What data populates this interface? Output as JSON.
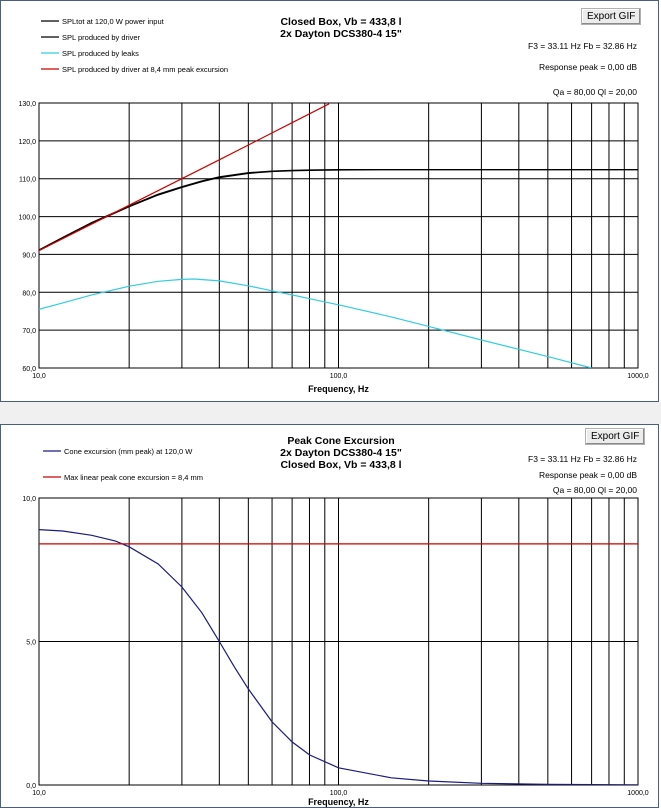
{
  "chart_data": [
    {
      "type": "line",
      "title_lines": [
        "Closed Box, Vb = 433,8 l",
        "2x Dayton  DCS380-4 15\""
      ],
      "xlabel": "Frequency, Hz",
      "ylabel": "",
      "x_scale": "log",
      "xlim": [
        10,
        1000
      ],
      "ylim": [
        60,
        130
      ],
      "x_tick_labels": [
        "10,0",
        "100,0",
        "1000,0"
      ],
      "y_tick_labels": [
        "60,0",
        "70,0",
        "80,0",
        "90,0",
        "100,0",
        "110,0",
        "120,0",
        "130,0"
      ],
      "info": [
        "F3 = 33.11 Hz  Fb = 32.86 Hz",
        "Response peak = 0,00 dB",
        "Qa = 80,00  Ql = 20,00"
      ],
      "export_button": "Export GIF",
      "grid": true,
      "legend_position": "top-left",
      "series": [
        {
          "name": "SPLtot  at 120,0  W power  input",
          "color": "#000000",
          "x": [
            10,
            12,
            15,
            20,
            25,
            30,
            35,
            40,
            50,
            60,
            70,
            80,
            100,
            150,
            200,
            300,
            500,
            700,
            1000
          ],
          "y": [
            91.2,
            94.5,
            98.4,
            102.8,
            105.9,
            107.9,
            109.4,
            110.5,
            111.6,
            112.0,
            112.2,
            112.3,
            112.4,
            112.4,
            112.4,
            112.4,
            112.4,
            112.4,
            112.4
          ]
        },
        {
          "name": "SPL produced   by driver",
          "color": "#000000",
          "x": [
            10,
            12,
            15,
            20,
            25,
            30,
            35,
            40,
            50,
            60,
            70,
            80,
            100,
            150,
            200,
            300,
            500,
            700,
            1000
          ],
          "y": [
            91.0,
            94.3,
            98.2,
            102.6,
            105.7,
            107.7,
            109.2,
            110.3,
            111.4,
            111.9,
            112.1,
            112.2,
            112.3,
            112.4,
            112.4,
            112.4,
            112.4,
            112.4,
            112.4
          ]
        },
        {
          "name": "SPL produced   by  leaks",
          "color": "#33ccdd",
          "x": [
            10,
            12,
            15,
            20,
            25,
            30,
            33,
            40,
            50,
            60,
            70,
            80,
            100,
            150,
            200,
            300,
            500,
            700
          ],
          "y": [
            75.5,
            77.2,
            79.3,
            81.6,
            82.9,
            83.4,
            83.5,
            83.0,
            81.7,
            80.4,
            79.3,
            78.3,
            76.7,
            73.5,
            71.0,
            67.4,
            63.0,
            60.0
          ]
        },
        {
          "name": "SPL produced   by driver at 8,4  mm peak  excursion",
          "color": "#cc0000",
          "x": [
            10,
            20,
            40,
            60,
            93
          ],
          "y": [
            91.0,
            103.0,
            115.0,
            122.1,
            129.8
          ]
        }
      ]
    },
    {
      "type": "line",
      "title_lines": [
        "Peak Cone Excursion",
        "2x Dayton  DCS380-4 15\"",
        "Closed Box, Vb = 433,8 l"
      ],
      "xlabel": "Frequency, Hz",
      "ylabel": "",
      "x_scale": "log",
      "xlim": [
        10,
        1000
      ],
      "ylim": [
        0,
        10
      ],
      "x_tick_labels": [
        "10,0",
        "100,0",
        "1000,0"
      ],
      "y_tick_labels": [
        "0,0",
        "5,0",
        "10,0"
      ],
      "info": [
        "F3 = 33.11 Hz  Fb = 32.86 Hz",
        "Response peak = 0,00 dB",
        "Qa = 80,00  Ql = 20,00"
      ],
      "export_button": "Export GIF",
      "grid": true,
      "legend_position": "top-left",
      "series": [
        {
          "name": "Cone excursion  (mm peak)  at 120,0  W",
          "color": "#1a1a80",
          "x": [
            10,
            12,
            15,
            18,
            20,
            25,
            30,
            35,
            40,
            45,
            50,
            60,
            70,
            80,
            100,
            150,
            200,
            300,
            500,
            1000
          ],
          "y": [
            8.9,
            8.85,
            8.7,
            8.5,
            8.3,
            7.7,
            6.9,
            6.0,
            5.0,
            4.1,
            3.35,
            2.2,
            1.5,
            1.05,
            0.6,
            0.25,
            0.14,
            0.06,
            0.02,
            0.005
          ]
        },
        {
          "name": "Max linear  peak  cone  excursion  = 8,4  mm",
          "color": "#cc0000",
          "x": [
            10,
            1000
          ],
          "y": [
            8.4,
            8.4
          ]
        }
      ]
    }
  ]
}
